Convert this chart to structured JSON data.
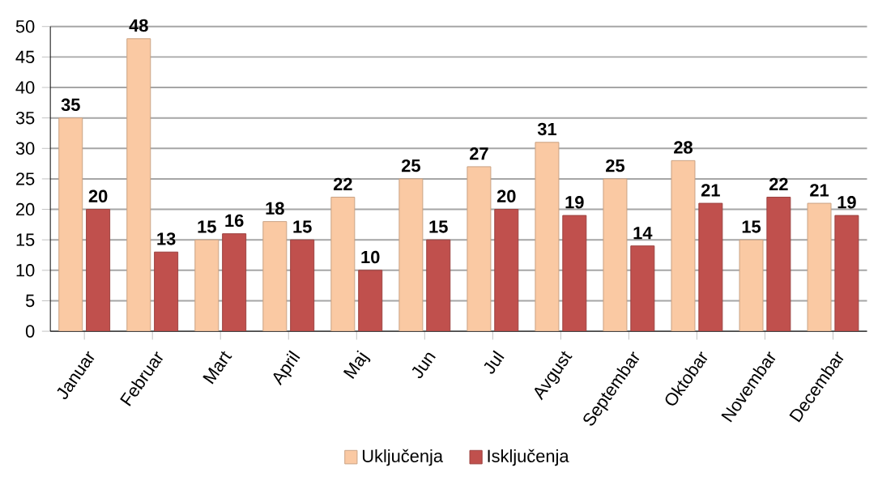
{
  "chart_data": {
    "type": "bar",
    "categories": [
      "Januar",
      "Februar",
      "Mart",
      "April",
      "Maj",
      "Jun",
      "Jul",
      "Avgust",
      "Septembar",
      "Oktobar",
      "Novembar",
      "Decembar"
    ],
    "series": [
      {
        "name": "Uključenja",
        "color": "#fac9a3",
        "values": [
          35,
          48,
          15,
          18,
          22,
          25,
          27,
          31,
          25,
          28,
          15,
          21
        ]
      },
      {
        "name": "Isključenja",
        "color": "#c0504d",
        "values": [
          20,
          13,
          16,
          15,
          10,
          15,
          20,
          19,
          14,
          21,
          22,
          19
        ]
      }
    ],
    "ylim": [
      0,
      50
    ],
    "yticks": [
      0,
      5,
      10,
      15,
      20,
      25,
      30,
      35,
      40,
      45,
      50
    ],
    "grid": "y",
    "legend": "bottom",
    "data_labels": true
  }
}
